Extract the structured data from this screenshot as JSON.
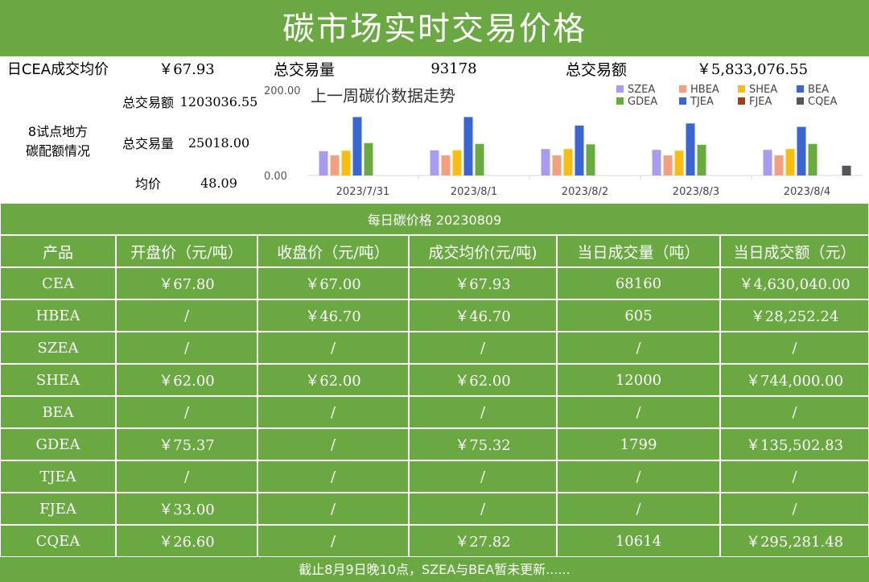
{
  "title": "碳市场实时交易价格",
  "summary": {
    "cea_label": "日CEA成交均价",
    "cea_value": "￥67.93",
    "vol_label": "总交易量",
    "vol_value": "93178",
    "amt_label": "总交易额",
    "amt_value": "￥5,833,076.55"
  },
  "regional": {
    "label_line1": "8试点地方",
    "label_line2": "碳配额情况",
    "rows": [
      {
        "label": "总交易额",
        "value": "1203036.55"
      },
      {
        "label": "总交易量",
        "value": "25018.00"
      },
      {
        "label": "均价",
        "value": "48.09"
      }
    ]
  },
  "chart_data": {
    "type": "bar",
    "title": "上一周碳价数据走势",
    "categories": [
      "2023/7/31",
      "2023/8/1",
      "2023/8/2",
      "2023/8/3",
      "2023/8/4"
    ],
    "ylim": [
      0,
      200
    ],
    "y_tick_labels": [
      "0.00",
      "200.00"
    ],
    "legend_position": "top-right",
    "series": [
      {
        "name": "SZEA",
        "color": "#a99bf0",
        "values": [
          57,
          59,
          62,
          60,
          60
        ]
      },
      {
        "name": "HBEA",
        "color": "#f4a07e",
        "values": [
          47,
          47,
          47,
          47,
          47
        ]
      },
      {
        "name": "SHEA",
        "color": "#f7be10",
        "values": [
          58,
          59,
          62,
          58,
          62
        ]
      },
      {
        "name": "BEA",
        "color": "#3b66d1",
        "values": [
          137,
          137,
          117,
          122,
          114
        ]
      },
      {
        "name": "GDEA",
        "color": "#69ab3f",
        "values": [
          76,
          74,
          73,
          72,
          74
        ]
      },
      {
        "name": "TJEA",
        "color": "#3b66d1",
        "values": [
          0,
          0,
          0,
          0,
          0
        ]
      },
      {
        "name": "FJEA",
        "color": "#a0410f",
        "values": [
          0,
          0,
          0,
          0,
          0
        ]
      },
      {
        "name": "CQEA",
        "color": "#555555",
        "values": [
          0,
          0,
          0,
          0,
          23
        ]
      }
    ]
  },
  "daily": {
    "label": "每日碳价格 20230809",
    "headers": [
      "产品",
      "开盘价（元/吨）",
      "收盘价（元/吨）",
      "成交均价(元/吨)",
      "当日成交量（吨）",
      "当日成交额（元）"
    ],
    "rows": [
      [
        "CEA",
        "￥67.80",
        "￥67.00",
        "￥67.93",
        "68160",
        "￥4,630,040.00"
      ],
      [
        "HBEA",
        "/",
        "￥46.70",
        "￥46.70",
        "605",
        "￥28,252.24"
      ],
      [
        "SZEA",
        "/",
        "/",
        "/",
        "/",
        "/"
      ],
      [
        "SHEA",
        "￥62.00",
        "￥62.00",
        "￥62.00",
        "12000",
        "￥744,000.00"
      ],
      [
        "BEA",
        "/",
        "/",
        "/",
        "/",
        "/"
      ],
      [
        "GDEA",
        "￥75.37",
        "/",
        "￥75.32",
        "1799",
        "￥135,502.83"
      ],
      [
        "TJEA",
        "/",
        "/",
        "/",
        "/",
        "/"
      ],
      [
        "FJEA",
        "￥33.00",
        "/",
        "/",
        "/",
        "/"
      ],
      [
        "CQEA",
        "￥26.60",
        "/",
        "￥27.82",
        "10614",
        "￥295,281.48"
      ]
    ]
  },
  "footer": "截止8月9日晚10点，SZEA与BEA暂未更新......"
}
